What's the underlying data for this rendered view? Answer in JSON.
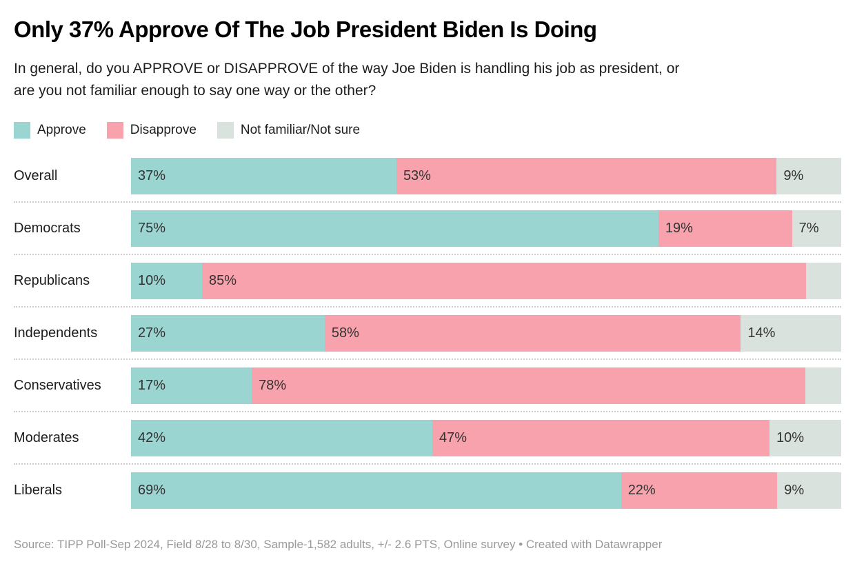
{
  "header": {
    "title": "Only 37% Approve Of The Job President Biden Is Doing",
    "subtitle": "In general, do you APPROVE or DISAPPROVE of the way Joe Biden is handling his job as president, or are you not familiar enough to say one way or the other?"
  },
  "colors": {
    "approve": "#9ad5d2",
    "disapprove": "#f8a2ad",
    "not_sure": "#d9e2dc",
    "separator": "#cccccc",
    "bar_label": "#333333",
    "footer_text": "#999999"
  },
  "legend": {
    "items": [
      {
        "key": "approve",
        "label": "Approve"
      },
      {
        "key": "disapprove",
        "label": "Disapprove"
      },
      {
        "key": "not_sure",
        "label": "Not familiar/Not sure"
      }
    ]
  },
  "chart_data": {
    "type": "bar",
    "stacked": true,
    "horizontal": true,
    "xlim": [
      0,
      100
    ],
    "unit": "%",
    "title": "Only 37% Approve Of The Job President Biden Is Doing",
    "categories": [
      "Overall",
      "Democrats",
      "Republicans",
      "Independents",
      "Conservatives",
      "Moderates",
      "Liberals"
    ],
    "series": [
      {
        "name": "Approve",
        "key": "approve",
        "values": [
          37,
          75,
          10,
          27,
          17,
          42,
          69
        ],
        "labels": [
          "37%",
          "75%",
          "10%",
          "27%",
          "17%",
          "42%",
          "69%"
        ]
      },
      {
        "name": "Disapprove",
        "key": "disapprove",
        "values": [
          53,
          19,
          85,
          58,
          78,
          47,
          22
        ],
        "labels": [
          "53%",
          "19%",
          "85%",
          "58%",
          "78%",
          "47%",
          "22%"
        ]
      },
      {
        "name": "Not familiar/Not sure",
        "key": "not_sure",
        "values": [
          9,
          7,
          5,
          14,
          5,
          10,
          9
        ],
        "labels": [
          "9%",
          "7%",
          "",
          "14%",
          "",
          "10%",
          "9%"
        ]
      }
    ]
  },
  "footer": {
    "text": "Source: TIPP Poll-Sep 2024, Field 8/28 to 8/30, Sample-1,582 adults, +/- 2.6 PTS, Online survey • Created with Datawrapper"
  }
}
